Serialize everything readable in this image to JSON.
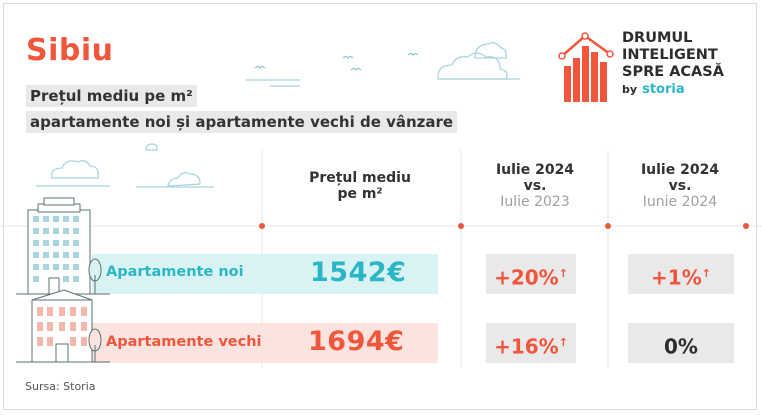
{
  "city": "Sibiu",
  "subtitle_line1": "Prețul mediu pe m²",
  "subtitle_line2": "apartamente noi și apartamente vechi de vânzare",
  "brand": {
    "line1": "DRUMUL",
    "line2": "INTELIGENT",
    "line3": "SPRE ACASĂ",
    "by": "by",
    "name": "storia"
  },
  "columns": {
    "price_header_line1": "Prețul mediu",
    "price_header_line2": "pe m²",
    "yoy_line1": "Iulie 2024",
    "yoy_line2": "vs.",
    "yoy_line3": "Iulie 2023",
    "mom_line1": "Iulie 2024",
    "mom_line2": "vs.",
    "mom_line3": "Iunie 2024"
  },
  "rows": [
    {
      "label": "Apartamente noi",
      "price": "1542€",
      "yoy": "+20%",
      "yoy_arrow": "↑",
      "mom": "+1%",
      "mom_arrow": "↑"
    },
    {
      "label": "Apartamente vechi",
      "price": "1694€",
      "yoy": "+16%",
      "yoy_arrow": "↑",
      "mom": "0%",
      "mom_arrow": ""
    }
  ],
  "source": "Sursa: Storia",
  "colors": {
    "accent": "#f0563c",
    "teal": "#2bb6c7",
    "new_bar": "#d9f2f4",
    "old_bar": "#fbe3df"
  },
  "icons": [
    "logo-bars-icon",
    "cloud-icon",
    "bird-icon",
    "tower-building-icon",
    "old-building-icon",
    "tree-icon"
  ]
}
